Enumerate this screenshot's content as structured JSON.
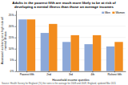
{
  "chart_data": {
    "type": "bar",
    "title": "Adults in the poorest fifth are much more likely to be at risk of\ndeveloping a mental illness than those on average incomes",
    "x_label": "Household income quintiles",
    "y_label": "Assessed as being at a high risk of\nmental illness",
    "source": "Source: Health Survey for England. (%) the rates is the average for 2008 and 2009, England, updated Mar 2011",
    "categories": [
      "Poorest fifth",
      "2nd",
      "3rd",
      "4th",
      "Richest fifth"
    ],
    "series": [
      {
        "name": "Men",
        "color": "#8ca8d8",
        "values": [
          23,
          17,
          13,
          12,
          11
        ]
      },
      {
        "name": "Women",
        "color": "#f28c1e",
        "values": [
          23,
          21,
          16,
          16,
          13
        ]
      }
    ],
    "ylim": [
      0,
      27
    ],
    "yticks": [
      {
        "value": 0,
        "label": "0%"
      },
      {
        "value": 5,
        "label": "5%"
      },
      {
        "value": 10,
        "label": "10%"
      },
      {
        "value": 15,
        "label": "15%"
      },
      {
        "value": 20,
        "label": "20%"
      },
      {
        "value": 25,
        "label": "25%"
      }
    ],
    "grid": true,
    "legend": "upper right"
  }
}
